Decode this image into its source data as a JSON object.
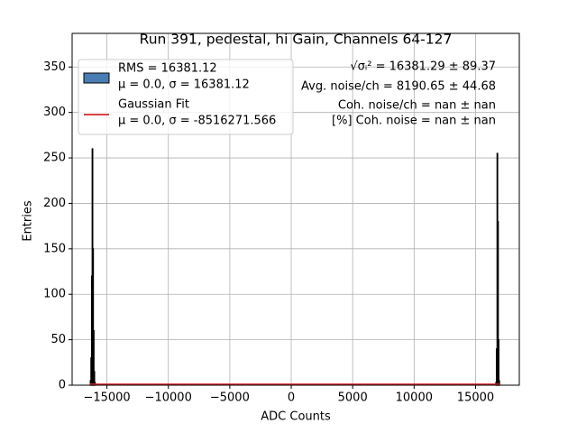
{
  "chart_data": {
    "type": "histogram",
    "title": "Run 391, pedestal, hi Gain, Channels 64-127",
    "xlabel": "ADC Counts",
    "ylabel": "Entries",
    "xlim": [
      -17830,
      18560
    ],
    "ylim": [
      0,
      387
    ],
    "xticks": [
      {
        "value": -15000,
        "label": "−15000"
      },
      {
        "value": -10000,
        "label": "−10000"
      },
      {
        "value": -5000,
        "label": "−5000"
      },
      0,
      5000,
      10000,
      15000
    ],
    "yticks": [
      0,
      50,
      100,
      150,
      200,
      250,
      300,
      350
    ],
    "grid": true,
    "legend": "upper left",
    "histogram": {
      "name": "RMS = 16381.12",
      "detail": "μ = 0.0, σ = 16381.12",
      "color": "#4a7db4",
      "edgecolor": "#000000",
      "bins": [
        -16350,
        -16300,
        -16250,
        -16200,
        -16150,
        -16100,
        -16050,
        -16000,
        -15950,
        16650,
        16700,
        16750,
        16800,
        16850,
        16900,
        16950
      ],
      "counts": [
        5,
        30,
        120,
        260,
        150,
        60,
        15,
        3,
        0,
        3,
        40,
        255,
        180,
        50,
        5
      ]
    },
    "fit": {
      "name": "Gaussian Fit",
      "detail": "μ = 0.0, σ = -8516271.566",
      "color": "#d62728",
      "x": [
        -16400,
        16950
      ],
      "values": [
        1,
        1
      ]
    },
    "annotations": [
      "√σᵢ² = 16381.29 ± 89.37",
      "Avg. noise/ch = 8190.65 ± 44.68",
      "Coh. noise/ch = nan ± nan",
      "[%] Coh. noise = nan ± nan"
    ]
  }
}
